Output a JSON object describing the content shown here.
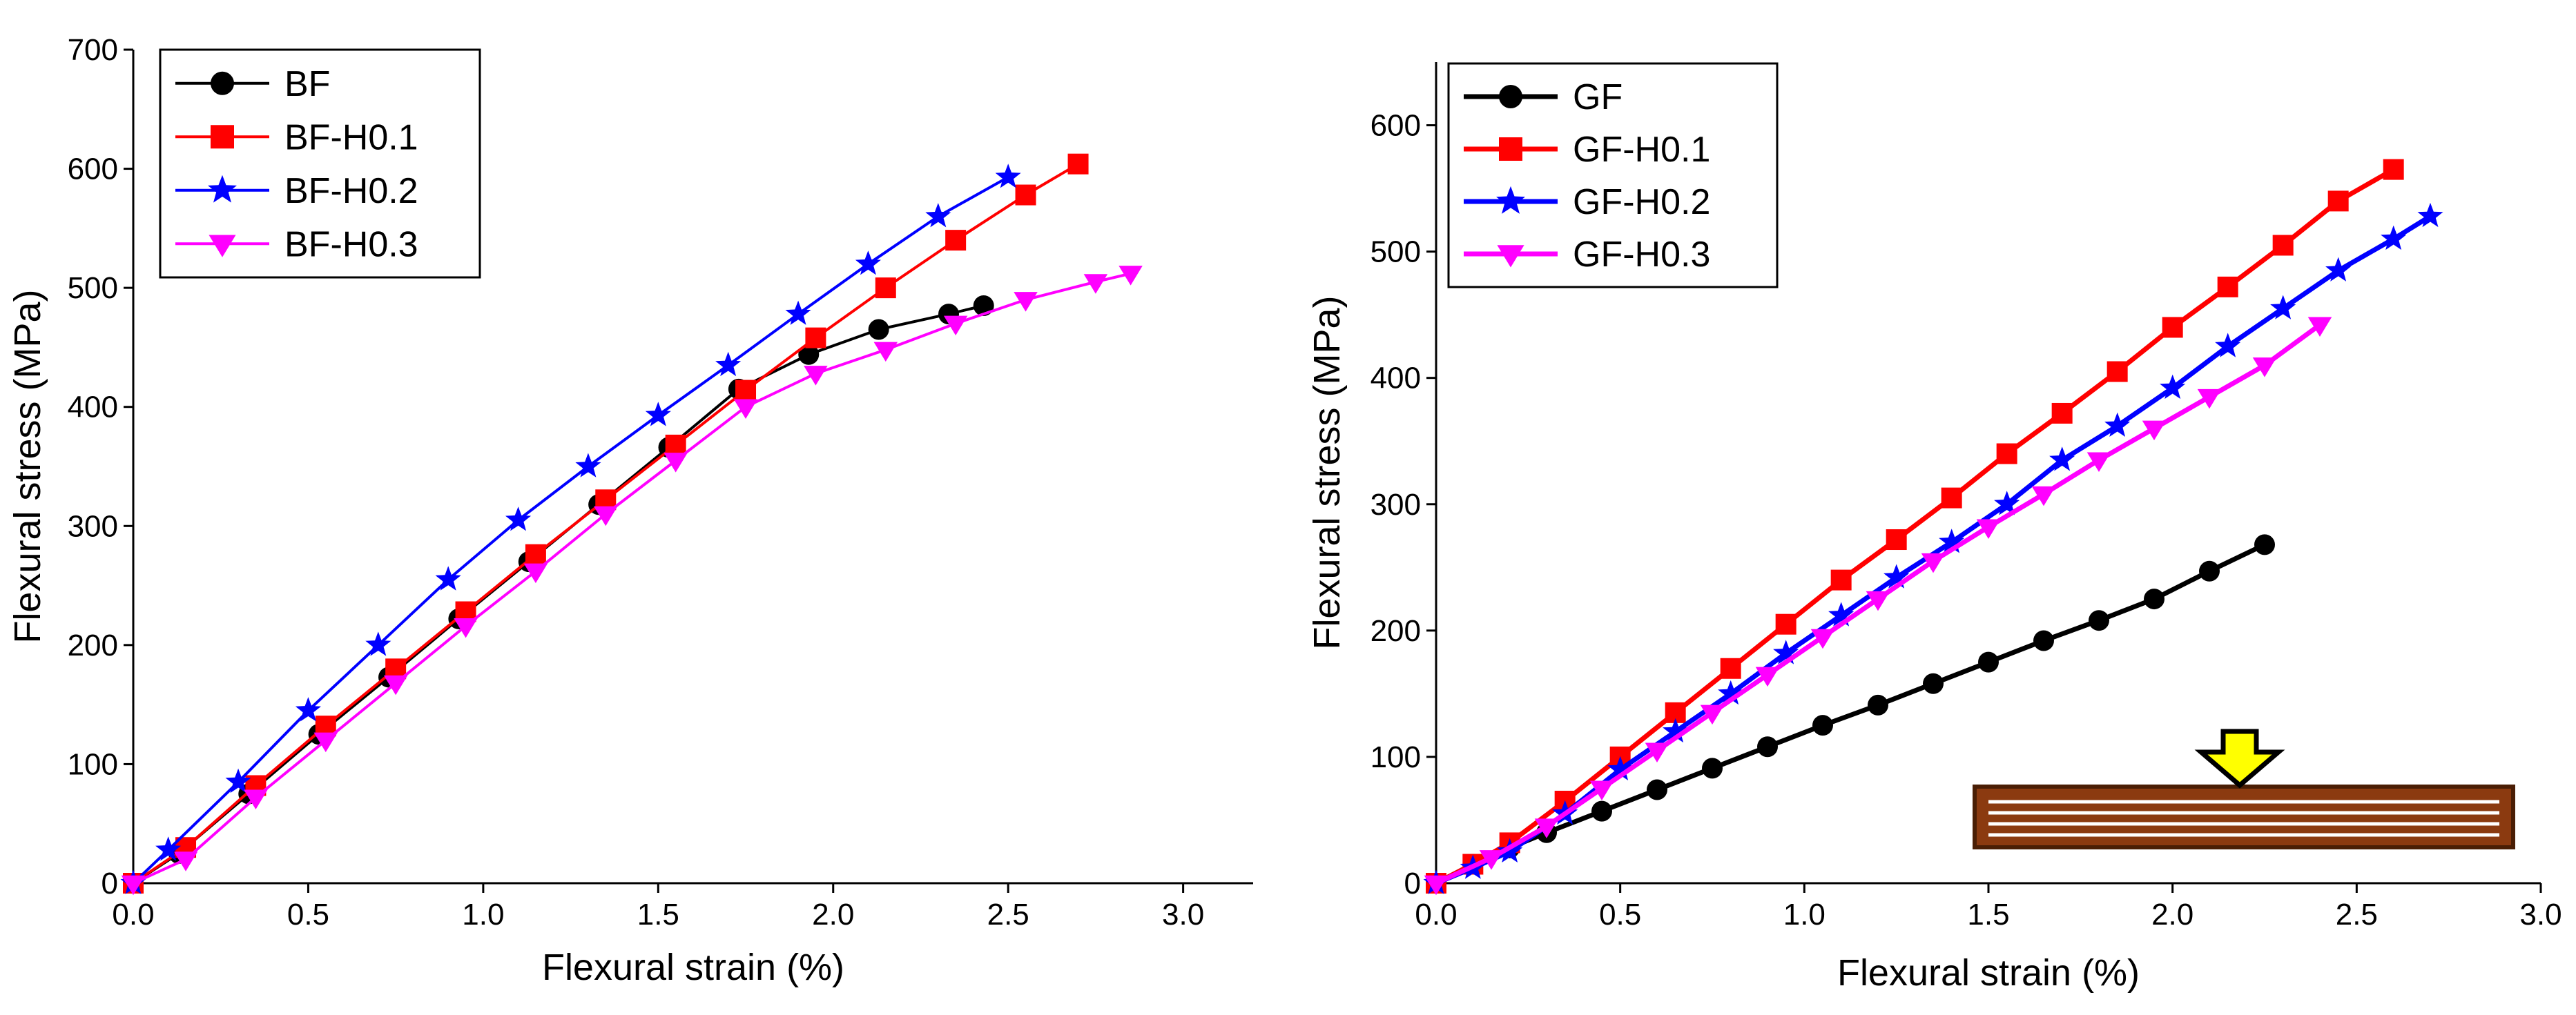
{
  "chart_data": [
    {
      "type": "line",
      "id": "left",
      "title": "",
      "xlabel": "Flexural strain (%)",
      "ylabel": "Flexural stress (MPa)",
      "xlim": [
        0,
        3.2
      ],
      "ylim": [
        0,
        700
      ],
      "xticks": [
        "0.0",
        "0.5",
        "1.0",
        "1.5",
        "2.0",
        "2.5",
        "3.0"
      ],
      "xtick_values": [
        0,
        0.5,
        1.0,
        1.5,
        2.0,
        2.5,
        3.0
      ],
      "yticks": [
        "0",
        "100",
        "200",
        "300",
        "400",
        "500",
        "600",
        "700"
      ],
      "ytick_values": [
        0,
        100,
        200,
        300,
        400,
        500,
        600,
        700
      ],
      "grid": false,
      "legend_position": "top-left",
      "series": [
        {
          "name": "BF",
          "color": "#000000",
          "marker": "circle",
          "x": [
            0,
            0.13,
            0.33,
            0.53,
            0.73,
            0.93,
            1.13,
            1.33,
            1.53,
            1.73,
            1.93,
            2.13,
            2.33,
            2.43
          ],
          "y": [
            0,
            25,
            75,
            125,
            173,
            222,
            270,
            318,
            366,
            415,
            444,
            465,
            478,
            485
          ]
        },
        {
          "name": "BF-H0.1",
          "color": "#ff0000",
          "marker": "square",
          "x": [
            0,
            0.15,
            0.35,
            0.55,
            0.75,
            0.95,
            1.15,
            1.35,
            1.55,
            1.75,
            1.95,
            2.15,
            2.35,
            2.55,
            2.7
          ],
          "y": [
            0,
            30,
            82,
            132,
            180,
            228,
            276,
            322,
            368,
            414,
            458,
            500,
            540,
            578,
            604
          ]
        },
        {
          "name": "BF-H0.2",
          "color": "#0000ff",
          "marker": "star",
          "x": [
            0,
            0.1,
            0.3,
            0.5,
            0.7,
            0.9,
            1.1,
            1.3,
            1.5,
            1.7,
            1.9,
            2.1,
            2.3,
            2.5
          ],
          "y": [
            0,
            28,
            85,
            145,
            200,
            255,
            305,
            350,
            393,
            435,
            478,
            520,
            560,
            593
          ]
        },
        {
          "name": "BF-H0.3",
          "color": "#ff00ff",
          "marker": "triangle-down",
          "x": [
            0,
            0.15,
            0.35,
            0.55,
            0.75,
            0.95,
            1.15,
            1.35,
            1.55,
            1.75,
            1.95,
            2.15,
            2.35,
            2.55,
            2.75,
            2.85
          ],
          "y": [
            0,
            20,
            72,
            120,
            168,
            216,
            262,
            310,
            355,
            400,
            428,
            448,
            470,
            490,
            505,
            512
          ]
        }
      ]
    },
    {
      "type": "line",
      "id": "right",
      "title": "",
      "xlabel": "Flexural strain (%)",
      "ylabel": "Flexural stress (MPa)",
      "xlim": [
        0,
        3.0
      ],
      "ylim": [
        0,
        650
      ],
      "xticks": [
        "0.0",
        "0.5",
        "1.0",
        "1.5",
        "2.0",
        "2.5",
        "3.0"
      ],
      "xtick_values": [
        0,
        0.5,
        1.0,
        1.5,
        2.0,
        2.5,
        3.0
      ],
      "yticks": [
        "0",
        "100",
        "200",
        "300",
        "400",
        "500",
        "600"
      ],
      "ytick_values": [
        0,
        100,
        200,
        300,
        400,
        500,
        600
      ],
      "grid": false,
      "legend_position": "top-left",
      "inset": "three-point bending specimen with downward load arrow",
      "series": [
        {
          "name": "GF",
          "color": "#000000",
          "marker": "circle",
          "x": [
            0,
            0.1,
            0.2,
            0.3,
            0.45,
            0.6,
            0.75,
            0.9,
            1.05,
            1.2,
            1.35,
            1.5,
            1.65,
            1.8,
            1.95,
            2.1,
            2.25
          ],
          "y": [
            0,
            15,
            28,
            40,
            57,
            74,
            91,
            108,
            125,
            141,
            158,
            175,
            192,
            208,
            225,
            247,
            268
          ]
        },
        {
          "name": "GF-H0.1",
          "color": "#ff0000",
          "marker": "square",
          "x": [
            0,
            0.1,
            0.2,
            0.35,
            0.5,
            0.65,
            0.8,
            0.95,
            1.1,
            1.25,
            1.4,
            1.55,
            1.7,
            1.85,
            2.0,
            2.15,
            2.3,
            2.45,
            2.6
          ],
          "y": [
            0,
            15,
            32,
            65,
            100,
            135,
            170,
            205,
            240,
            272,
            305,
            340,
            372,
            405,
            440,
            472,
            505,
            540,
            565
          ]
        },
        {
          "name": "GF-H0.2",
          "color": "#0000ff",
          "marker": "star",
          "x": [
            0,
            0.1,
            0.2,
            0.35,
            0.5,
            0.65,
            0.8,
            0.95,
            1.1,
            1.25,
            1.4,
            1.55,
            1.7,
            1.85,
            2.0,
            2.15,
            2.3,
            2.45,
            2.6,
            2.7
          ],
          "y": [
            0,
            12,
            25,
            55,
            90,
            120,
            150,
            182,
            212,
            242,
            270,
            300,
            335,
            362,
            392,
            425,
            455,
            485,
            510,
            528
          ]
        },
        {
          "name": "GF-H0.3",
          "color": "#ff00ff",
          "marker": "triangle-down",
          "x": [
            0,
            0.15,
            0.3,
            0.45,
            0.6,
            0.75,
            0.9,
            1.05,
            1.2,
            1.35,
            1.5,
            1.65,
            1.8,
            1.95,
            2.1,
            2.25,
            2.4
          ],
          "y": [
            0,
            20,
            45,
            75,
            105,
            135,
            165,
            195,
            225,
            255,
            282,
            308,
            335,
            360,
            385,
            410,
            442
          ]
        }
      ]
    }
  ]
}
